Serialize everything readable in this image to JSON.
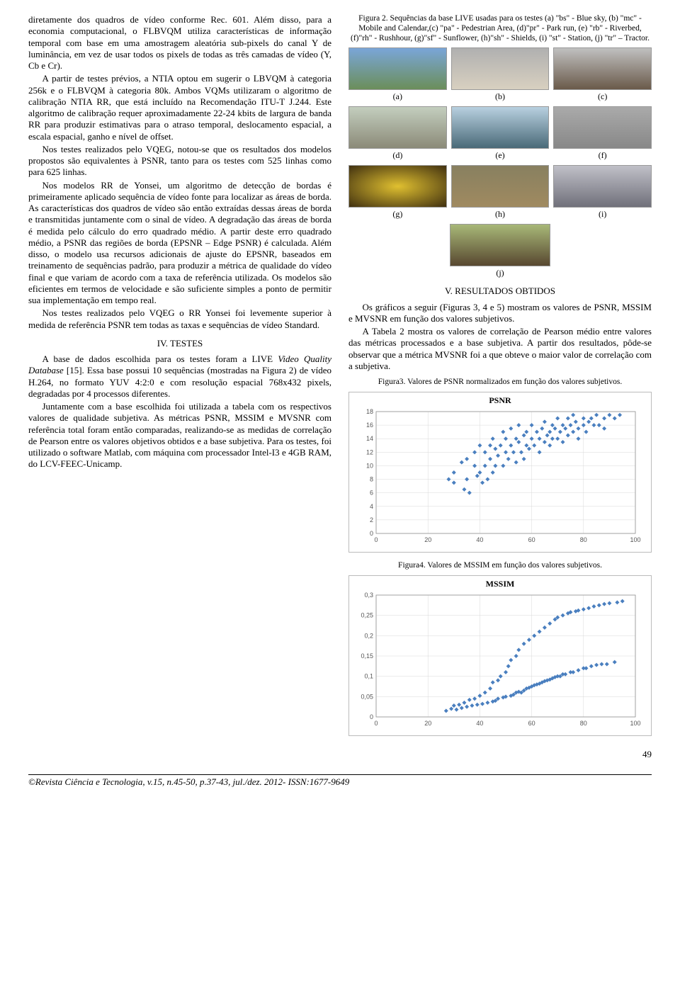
{
  "left": {
    "p1": "diretamente dos quadros de vídeo conforme Rec. 601. Além disso, para a economia computacional, o FLBVQM utiliza características de informação temporal com base em uma amostragem aleatória sub-pixels do canal Y de luminância, em vez de usar todos os pixels de todas as três camadas de vídeo (Y, Cb e Cr).",
    "p2": "A partir de testes prévios, a NTIA optou em sugerir o LBVQM à categoria 256k e o FLBVQM à categoria 80k. Ambos VQMs utilizaram o algoritmo de calibração NTIA RR, que está incluído na Recomendação ITU-T J.244. Este algoritmo de calibração requer aproximadamente 22-24 kbits de largura de banda RR para produzir estimativas para o atraso temporal, deslocamento espacial, a escala espacial, ganho e nível de offset.",
    "p3": "Nos testes realizados pelo VQEG, notou-se que os resultados dos modelos propostos são equivalentes à PSNR, tanto para os testes com 525 linhas como para 625 linhas.",
    "p4": "Nos modelos RR de Yonsei, um algoritmo de detecção de bordas é primeiramente aplicado sequência de vídeo fonte para localizar as áreas de borda. As características dos quadros de vídeo são então extraídas dessas áreas de borda e transmitidas juntamente com o sinal de vídeo. A degradação das áreas de borda é medida pelo cálculo do erro quadrado médio. A partir deste erro quadrado médio, a PSNR das regiões de borda (EPSNR – Edge PSNR) é calculada. Além disso, o modelo usa recursos adicionais de ajuste do EPSNR, baseados em treinamento de sequências padrão, para produzir a métrica de qualidade do vídeo final e que variam de acordo com a taxa de referência utilizada. Os modelos são eficientes em termos de velocidade e são suficiente simples a ponto de permitir sua implementação em tempo real.",
    "p5": "Nos testes realizados pelo VQEG o RR Yonsei foi levemente superior à medida de referência PSNR tem todas as taxas e sequências de vídeo Standard.",
    "sec4": "IV. TESTES",
    "p6a": "A base de dados escolhida para os testes foram a LIVE ",
    "p6b": "Video Quality Database",
    "p6c": " [15]. Essa base possui 10 sequências (mostradas na Figura 2) de vídeo H.264, no formato YUV 4:2:0 e com resolução espacial 768x432 pixels, degradadas por 4 processos diferentes.",
    "p7": "Juntamente com a base escolhida foi utilizada a tabela com os respectivos valores de qualidade subjetiva. As métricas PSNR, MSSIM e MVSNR com referência total foram então comparadas, realizando-se as medidas de correlação de Pearson entre os valores objetivos obtidos e a base subjetiva. Para os testes, foi utilizado o software Matlab, com máquina com processador Intel-I3 e 4GB RAM, do LCV-FEEC-Unicamp."
  },
  "right": {
    "fig2_caption": "Figura 2. Sequências da base LIVE usadas para os testes (a) \"bs\" - Blue sky, (b) \"mc\" - Mobile and Calendar,(c) \"pa\" - Pedestrian Area, (d)\"pr\" - Park run, (e) \"rb\" - Riverbed, (f)\"rh\" - Rushhour, (g)\"sf\" - Sunflower, (h)\"sh\" - Shields, (i) \"st\" - Station, (j) \"tr\" – Tractor.",
    "labels_row1": [
      "(a)",
      "(b)",
      "(c)"
    ],
    "labels_row2": [
      "(d)",
      "(e)",
      "(f)"
    ],
    "labels_row3": [
      "(g)",
      "(h)",
      "(i)"
    ],
    "label_j": "(j)",
    "sec5": "V. RESULTADOS OBTIDOS",
    "p8": "Os gráficos a seguir (Figuras 3, 4 e 5) mostram os valores de PSNR, MSSIM e MVSNR em função dos valores subjetivos.",
    "p9": "A Tabela 2 mostra os valores de correlação de Pearson médio entre valores das métricas processados e a base subjetiva. A partir dos resultados, pôde-se observar que a métrica MVSNR foi a que obteve o maior valor de correlação com a subjetiva.",
    "fig3_caption": "Figura3. Valores de PSNR normalizados em função dos valores subjetivos.",
    "fig4_caption": "Figura4. Valores de MSSIM em função dos valores subjetivos."
  },
  "footer": {
    "journal": "©Revista Ciência e Tecnologia, v.15, n.45-50, p.37-43, jul./dez. 2012- ISSN:1677-9649",
    "page": "49"
  },
  "charts": {
    "psnr": {
      "type": "scatter",
      "title": "PSNR",
      "xlim": [
        0,
        100
      ],
      "ylim": [
        0,
        18
      ],
      "xticks": [
        0,
        20,
        40,
        60,
        80,
        100
      ],
      "yticks": [
        0,
        2,
        4,
        6,
        8,
        10,
        12,
        14,
        16,
        18
      ],
      "marker_color": "#4a7fbf",
      "grid_color": "#d8d8d8",
      "background_color": "#ffffff",
      "points": [
        [
          28,
          8
        ],
        [
          30,
          9
        ],
        [
          30,
          7.5
        ],
        [
          33,
          10.5
        ],
        [
          34,
          6.5
        ],
        [
          35,
          8
        ],
        [
          35,
          11
        ],
        [
          36,
          6
        ],
        [
          38,
          10
        ],
        [
          38,
          12
        ],
        [
          39,
          8.5
        ],
        [
          40,
          9
        ],
        [
          40,
          13
        ],
        [
          41,
          7.5
        ],
        [
          42,
          10
        ],
        [
          42,
          12
        ],
        [
          43,
          8
        ],
        [
          44,
          11
        ],
        [
          44,
          13
        ],
        [
          45,
          9
        ],
        [
          45,
          14
        ],
        [
          46,
          10
        ],
        [
          46,
          12.5
        ],
        [
          47,
          11.5
        ],
        [
          48,
          13
        ],
        [
          49,
          10
        ],
        [
          49,
          15
        ],
        [
          50,
          12
        ],
        [
          50,
          14
        ],
        [
          51,
          11
        ],
        [
          52,
          13
        ],
        [
          52,
          15.5
        ],
        [
          53,
          12
        ],
        [
          54,
          14
        ],
        [
          54,
          10.5
        ],
        [
          55,
          13.5
        ],
        [
          55,
          16
        ],
        [
          56,
          12
        ],
        [
          57,
          14.5
        ],
        [
          57,
          11
        ],
        [
          58,
          13
        ],
        [
          58,
          15
        ],
        [
          59,
          12.5
        ],
        [
          60,
          14
        ],
        [
          60,
          16
        ],
        [
          61,
          13
        ],
        [
          62,
          15
        ],
        [
          63,
          14
        ],
        [
          63,
          12
        ],
        [
          64,
          15.5
        ],
        [
          65,
          13.5
        ],
        [
          65,
          16.5
        ],
        [
          66,
          14.5
        ],
        [
          67,
          13
        ],
        [
          67,
          15
        ],
        [
          68,
          14
        ],
        [
          68,
          16
        ],
        [
          69,
          15.5
        ],
        [
          70,
          14
        ],
        [
          70,
          17
        ],
        [
          71,
          15
        ],
        [
          72,
          16
        ],
        [
          72,
          13.5
        ],
        [
          73,
          15.5
        ],
        [
          74,
          14.5
        ],
        [
          74,
          17
        ],
        [
          75,
          16
        ],
        [
          76,
          15
        ],
        [
          76,
          17.5
        ],
        [
          77,
          16.5
        ],
        [
          78,
          15.5
        ],
        [
          78,
          14
        ],
        [
          80,
          16
        ],
        [
          80,
          17
        ],
        [
          81,
          15
        ],
        [
          82,
          16.5
        ],
        [
          83,
          17
        ],
        [
          84,
          16
        ],
        [
          85,
          17.5
        ],
        [
          86,
          16
        ],
        [
          88,
          17
        ],
        [
          88,
          15.5
        ],
        [
          90,
          17.5
        ],
        [
          92,
          17
        ],
        [
          94,
          17.5
        ]
      ]
    },
    "mssim": {
      "type": "scatter",
      "title": "MSSIM",
      "xlim": [
        0,
        100
      ],
      "ylim": [
        0,
        0.3
      ],
      "xticks": [
        0,
        20,
        40,
        60,
        80,
        100
      ],
      "yticks": [
        0,
        0.05,
        0.1,
        0.15,
        0.2,
        0.25,
        0.3
      ],
      "marker_color": "#4a7fbf",
      "grid_color": "#d8d8d8",
      "background_color": "#ffffff",
      "points": [
        [
          27,
          0.015
        ],
        [
          29,
          0.02
        ],
        [
          30,
          0.028
        ],
        [
          31,
          0.018
        ],
        [
          32,
          0.03
        ],
        [
          33,
          0.022
        ],
        [
          34,
          0.035
        ],
        [
          35,
          0.025
        ],
        [
          36,
          0.042
        ],
        [
          37,
          0.028
        ],
        [
          38,
          0.045
        ],
        [
          39,
          0.03
        ],
        [
          40,
          0.052
        ],
        [
          41,
          0.032
        ],
        [
          42,
          0.06
        ],
        [
          43,
          0.035
        ],
        [
          44,
          0.07
        ],
        [
          45,
          0.038
        ],
        [
          45,
          0.085
        ],
        [
          46,
          0.04
        ],
        [
          47,
          0.09
        ],
        [
          47,
          0.045
        ],
        [
          48,
          0.1
        ],
        [
          49,
          0.048
        ],
        [
          50,
          0.11
        ],
        [
          50,
          0.05
        ],
        [
          51,
          0.125
        ],
        [
          52,
          0.052
        ],
        [
          52,
          0.14
        ],
        [
          53,
          0.055
        ],
        [
          54,
          0.15
        ],
        [
          54,
          0.06
        ],
        [
          55,
          0.165
        ],
        [
          55,
          0.062
        ],
        [
          56,
          0.06
        ],
        [
          57,
          0.18
        ],
        [
          57,
          0.065
        ],
        [
          58,
          0.07
        ],
        [
          59,
          0.19
        ],
        [
          59,
          0.072
        ],
        [
          60,
          0.075
        ],
        [
          61,
          0.2
        ],
        [
          61,
          0.078
        ],
        [
          62,
          0.08
        ],
        [
          63,
          0.21
        ],
        [
          63,
          0.082
        ],
        [
          64,
          0.085
        ],
        [
          65,
          0.22
        ],
        [
          65,
          0.088
        ],
        [
          66,
          0.09
        ],
        [
          67,
          0.23
        ],
        [
          67,
          0.092
        ],
        [
          68,
          0.095
        ],
        [
          69,
          0.24
        ],
        [
          69,
          0.098
        ],
        [
          70,
          0.1
        ],
        [
          70,
          0.245
        ],
        [
          71,
          0.1
        ],
        [
          72,
          0.25
        ],
        [
          72,
          0.105
        ],
        [
          73,
          0.105
        ],
        [
          74,
          0.255
        ],
        [
          75,
          0.11
        ],
        [
          75,
          0.258
        ],
        [
          76,
          0.11
        ],
        [
          77,
          0.26
        ],
        [
          78,
          0.115
        ],
        [
          78,
          0.262
        ],
        [
          80,
          0.12
        ],
        [
          80,
          0.265
        ],
        [
          81,
          0.12
        ],
        [
          82,
          0.268
        ],
        [
          83,
          0.125
        ],
        [
          84,
          0.272
        ],
        [
          85,
          0.128
        ],
        [
          86,
          0.275
        ],
        [
          87,
          0.13
        ],
        [
          88,
          0.278
        ],
        [
          89,
          0.13
        ],
        [
          90,
          0.28
        ],
        [
          92,
          0.135
        ],
        [
          93,
          0.282
        ],
        [
          95,
          0.285
        ]
      ]
    }
  }
}
